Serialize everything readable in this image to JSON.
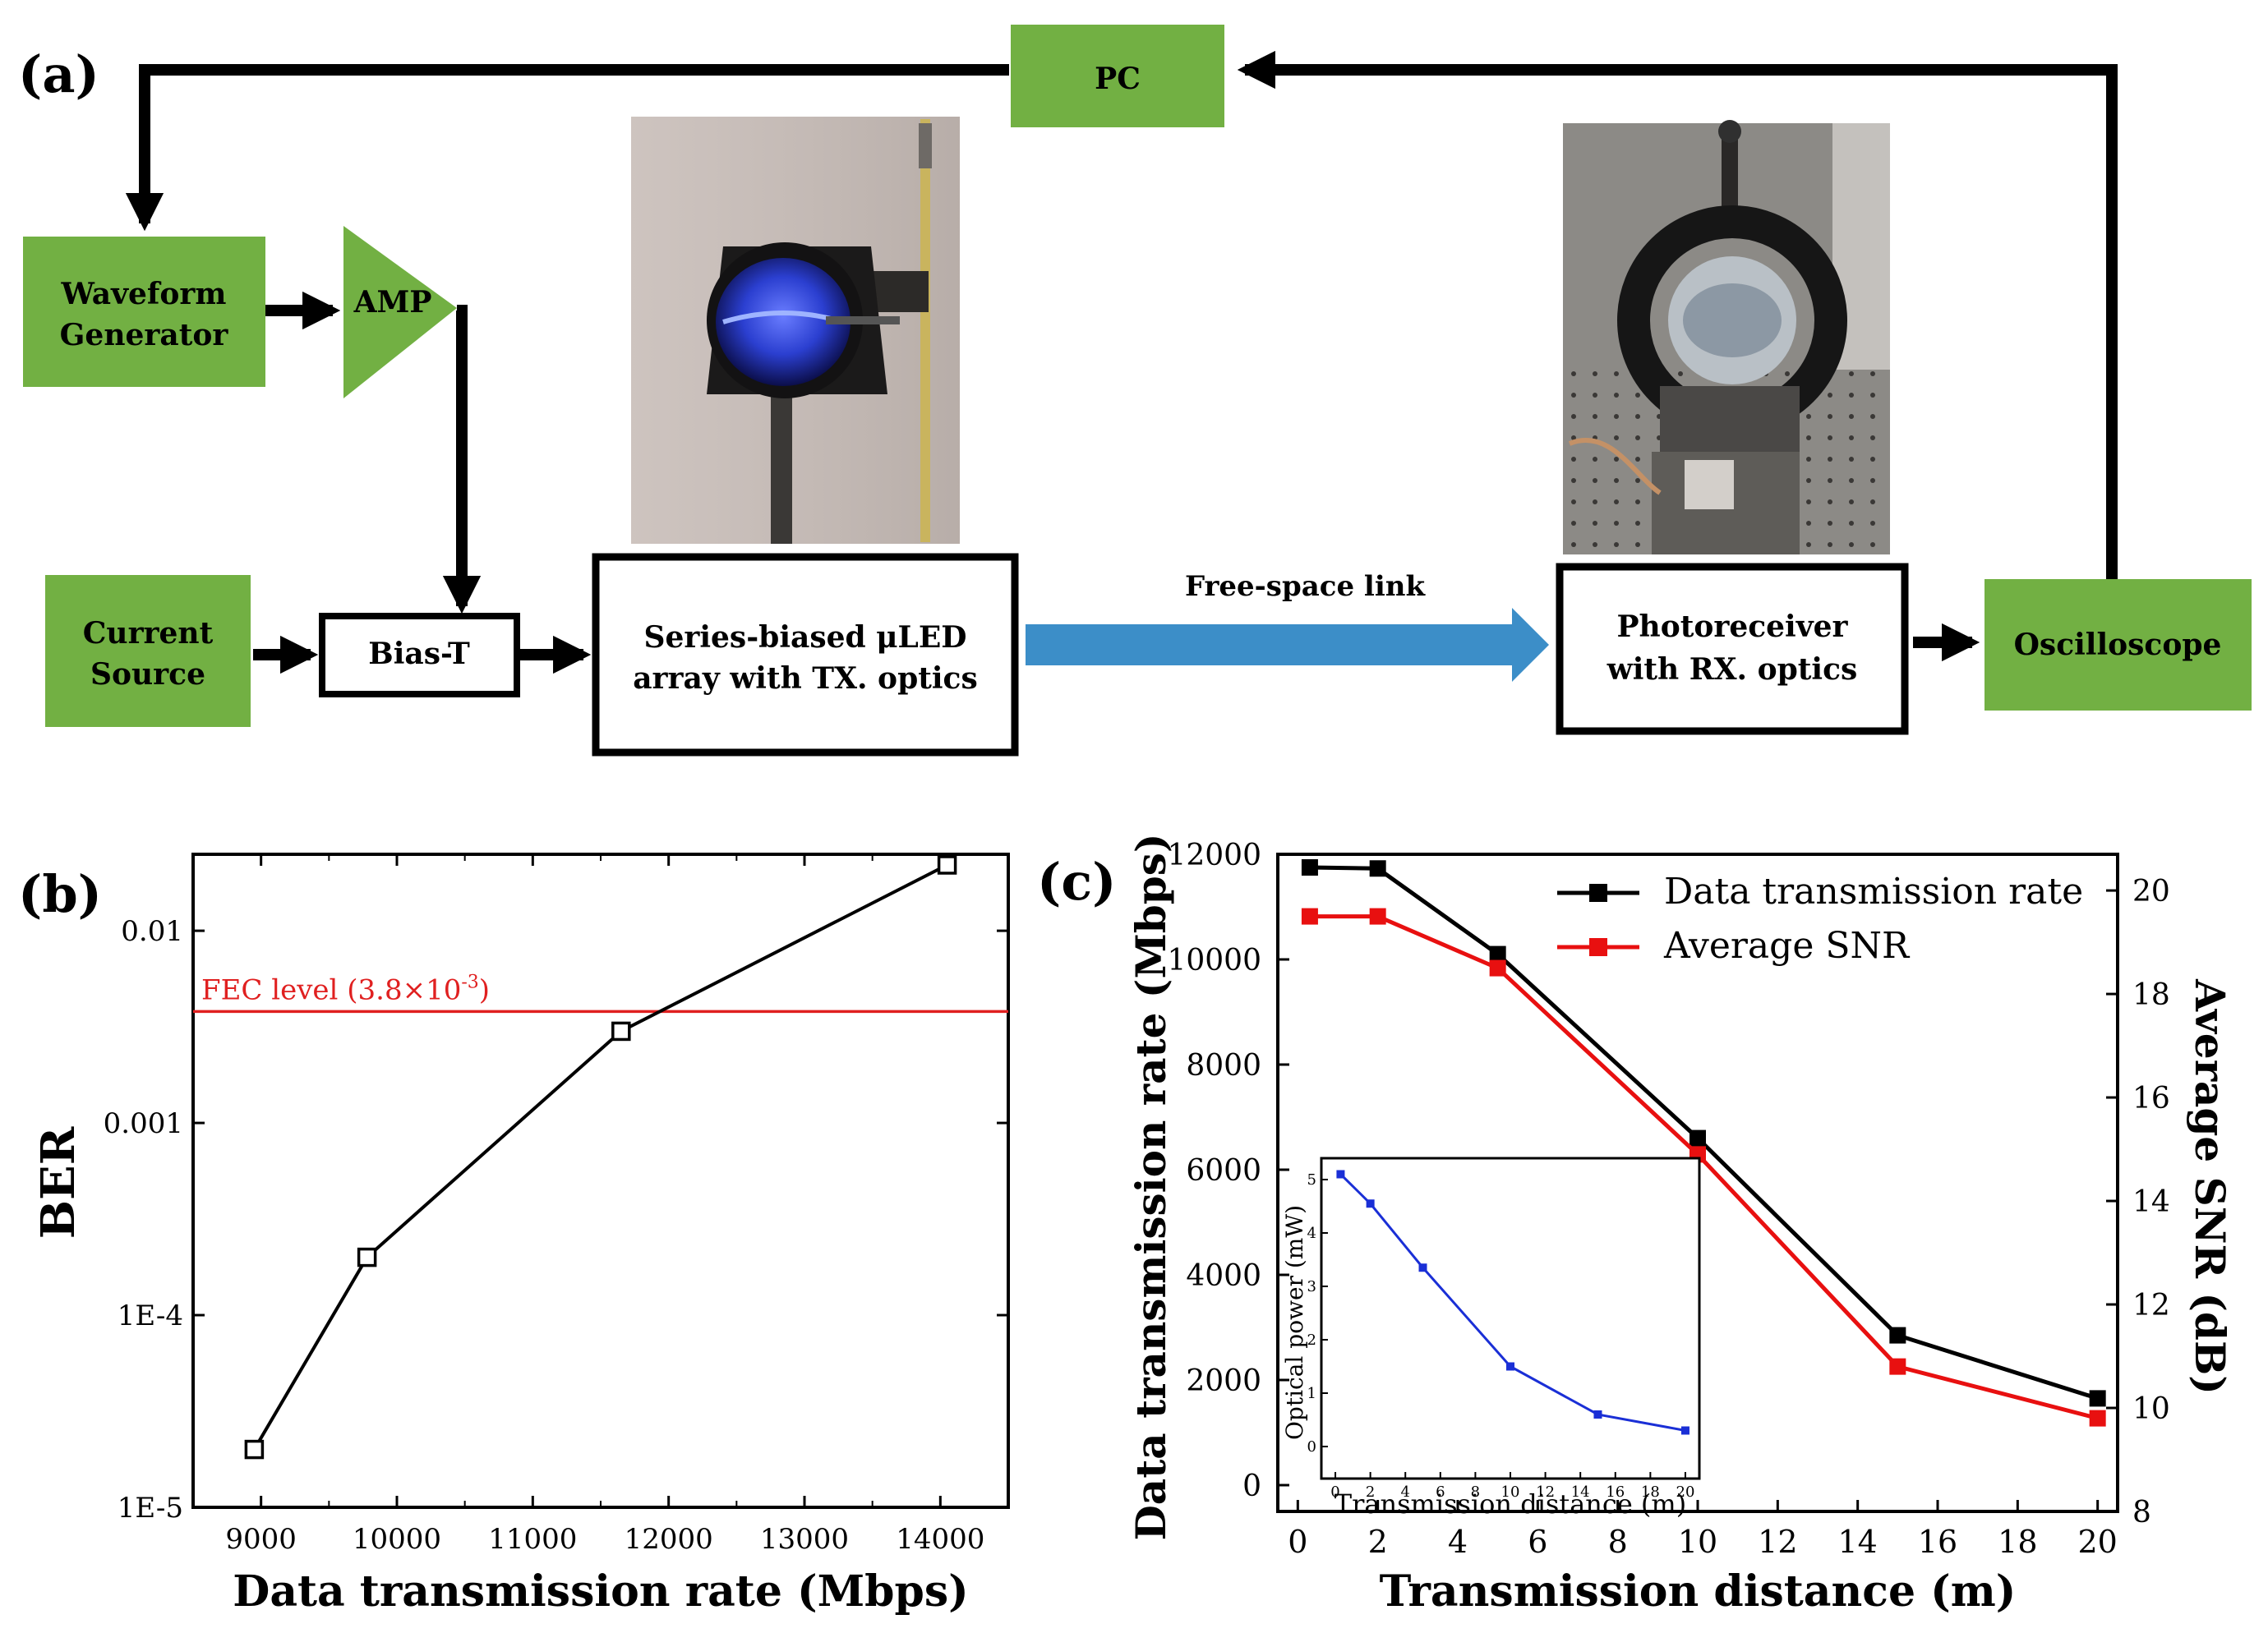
{
  "panel_a": {
    "label": "(a)",
    "pc": "PC",
    "waveform_line1": "Waveform",
    "waveform_line2": "Generator",
    "amp": "AMP",
    "current_line1": "Current",
    "current_line2": "Source",
    "biast": "Bias-T",
    "tx_line1": "Series-biased μLED",
    "tx_line2": "array with TX. optics",
    "link": "Free-space link",
    "rx_line1": "Photoreceiver",
    "rx_line2": "with RX. optics",
    "osc": "Oscilloscope",
    "colors": {
      "green": "#72b043",
      "arrow_blue": "#3c8ec8",
      "photo_tx_bg": "#c8bdb8",
      "photo_rx_bg": "#8c8a86"
    }
  },
  "panel_b": {
    "label": "(b)"
  },
  "panel_c": {
    "label": "(c)"
  },
  "chart_data": [
    {
      "id": "b",
      "type": "line",
      "xlabel": "Data transmission rate (Mbps)",
      "ylabel": "BER",
      "yscale": "log",
      "xlim": [
        8500,
        14500
      ],
      "ylim": [
        1e-05,
        0.025
      ],
      "xticks": [
        9000,
        10000,
        11000,
        12000,
        13000,
        14000
      ],
      "xtick_labels": [
        "9000",
        "10000",
        "11000",
        "12000",
        "13000",
        "14000"
      ],
      "yticks": [
        1e-05,
        0.0001,
        0.001,
        0.01
      ],
      "ytick_labels": [
        "1E-5",
        "1E-4",
        "0.001",
        "0.01"
      ],
      "series": [
        {
          "name": "BER",
          "color": "#000000",
          "marker": "open-square",
          "x": [
            8950,
            9780,
            11650,
            14050
          ],
          "y": [
            2e-05,
            0.0002,
            0.003,
            0.022
          ]
        }
      ],
      "hline": {
        "y": 0.0038,
        "color": "#e02020",
        "label": "FEC level (3.8×10",
        "label_sup": "-3",
        "label_end": ")"
      }
    },
    {
      "id": "c",
      "type": "line",
      "xlabel": "Transmission distance (m)",
      "ylabel": "Data transmission rate (Mbps)",
      "y2label": "Average SNR (dB)",
      "xlim": [
        -0.5,
        20.5
      ],
      "ylim": [
        -500,
        12000
      ],
      "y2lim": [
        8,
        20.7
      ],
      "xticks": [
        0,
        2,
        4,
        6,
        8,
        10,
        12,
        14,
        16,
        18,
        20
      ],
      "xtick_labels": [
        "0",
        "2",
        "4",
        "6",
        "8",
        "10",
        "12",
        "14",
        "16",
        "18",
        "20"
      ],
      "yticks": [
        0,
        2000,
        4000,
        6000,
        8000,
        10000,
        12000
      ],
      "ytick_labels": [
        "0",
        "2000",
        "4000",
        "6000",
        "8000",
        "10000",
        "12000"
      ],
      "y2ticks": [
        8,
        10,
        12,
        14,
        16,
        18,
        20
      ],
      "y2tick_labels": [
        "8",
        "10",
        "12",
        "14",
        "16",
        "18",
        "20"
      ],
      "series": [
        {
          "name": "Data transmission rate",
          "color": "#000000",
          "axis": "left",
          "x": [
            0.3,
            2,
            5,
            10,
            15,
            20
          ],
          "y": [
            11750,
            11730,
            10100,
            6600,
            2850,
            1650
          ]
        },
        {
          "name": "Average SNR",
          "color": "#e81010",
          "axis": "right",
          "x": [
            0.3,
            2,
            5,
            10,
            15,
            20
          ],
          "y": [
            19.5,
            19.5,
            18.5,
            14.9,
            10.8,
            9.8
          ]
        }
      ],
      "inset": {
        "type": "line",
        "xlabel": "Transmission distance (m)",
        "ylabel": "Optical power (mW)",
        "xlim": [
          -0.8,
          20.8
        ],
        "ylim": [
          -0.6,
          5.4
        ],
        "xticks": [
          0,
          2,
          4,
          6,
          8,
          10,
          12,
          14,
          16,
          18,
          20
        ],
        "xtick_labels": [
          "0",
          "2",
          "4",
          "6",
          "8",
          "10",
          "12",
          "14",
          "16",
          "18",
          "20"
        ],
        "yticks": [
          0,
          1,
          2,
          3,
          4,
          5
        ],
        "ytick_labels": [
          "0",
          "1",
          "2",
          "3",
          "4",
          "5"
        ],
        "series": [
          {
            "name": "Optical power",
            "color": "#1a2fd6",
            "x": [
              0.3,
              2,
              5,
              10,
              15,
              20
            ],
            "y": [
              5.1,
              4.55,
              3.35,
              1.5,
              0.6,
              0.3
            ]
          }
        ]
      }
    }
  ]
}
